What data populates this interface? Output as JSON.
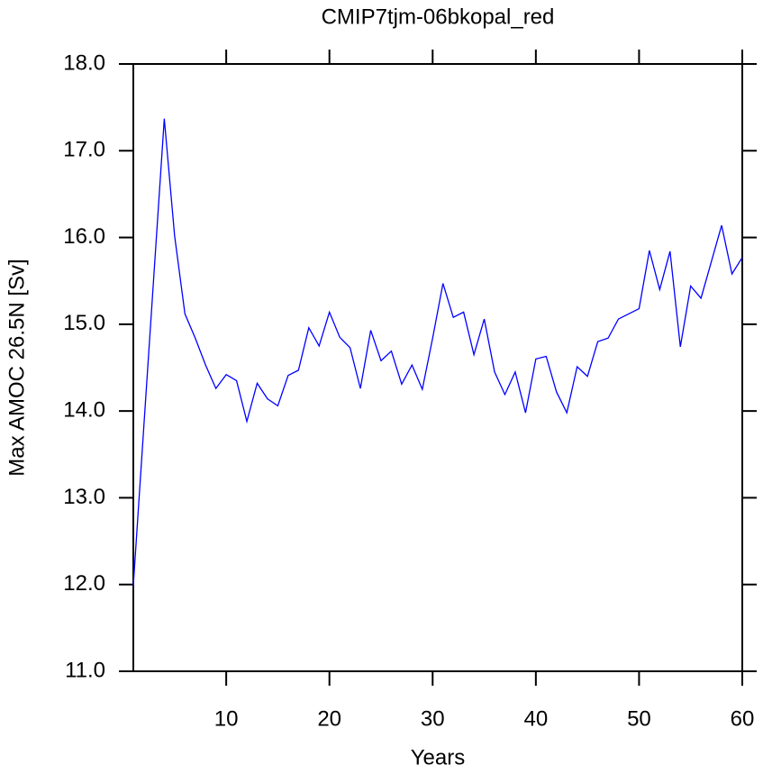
{
  "chart_data": {
    "type": "line",
    "title": "CMIP7tjm-06bkopal_red",
    "x_label": "Years",
    "y_label": "Max AMOC 26.5N [Sv]",
    "x": [
      1,
      2,
      3,
      4,
      5,
      6,
      7,
      8,
      9,
      10,
      11,
      12,
      13,
      14,
      15,
      16,
      17,
      18,
      19,
      20,
      21,
      22,
      23,
      24,
      25,
      26,
      27,
      28,
      29,
      30,
      31,
      32,
      33,
      34,
      35,
      36,
      37,
      38,
      39,
      40,
      41,
      42,
      43,
      44,
      45,
      46,
      47,
      48,
      49,
      50,
      51,
      52,
      53,
      54,
      55,
      56,
      57,
      58,
      59,
      60
    ],
    "series": [
      {
        "name": "Max AMOC",
        "color": "#0000ff",
        "values": [
          11.99,
          13.79,
          15.58,
          17.37,
          16.02,
          15.12,
          14.84,
          14.53,
          14.26,
          14.42,
          14.35,
          13.88,
          14.32,
          14.14,
          14.06,
          14.41,
          14.47,
          14.96,
          14.75,
          15.14,
          14.85,
          14.73,
          14.26,
          14.93,
          14.58,
          14.69,
          14.31,
          14.53,
          14.25,
          14.84,
          15.47,
          15.08,
          15.14,
          14.65,
          15.06,
          14.45,
          14.19,
          14.45,
          13.98,
          14.6,
          14.63,
          14.22,
          13.98,
          14.51,
          14.4,
          14.8,
          14.84,
          15.06,
          15.12,
          15.18,
          15.85,
          15.4,
          15.84,
          14.74,
          15.44,
          15.3,
          15.72,
          16.14,
          15.58,
          15.77
        ]
      }
    ],
    "xlim": [
      1,
      60
    ],
    "xticks": [
      10,
      20,
      30,
      40,
      50,
      60
    ],
    "ylim": [
      11,
      18
    ],
    "yticks": [
      {
        "value": 11,
        "label": "11.0"
      },
      {
        "value": 12,
        "label": "12.0"
      },
      {
        "value": 13,
        "label": "13.0"
      },
      {
        "value": 14,
        "label": "14.0"
      },
      {
        "value": 15,
        "label": "15.0"
      },
      {
        "value": 16,
        "label": "16.0"
      },
      {
        "value": 17,
        "label": "17.0"
      },
      {
        "value": 18,
        "label": "18.0"
      }
    ],
    "grid": false
  }
}
